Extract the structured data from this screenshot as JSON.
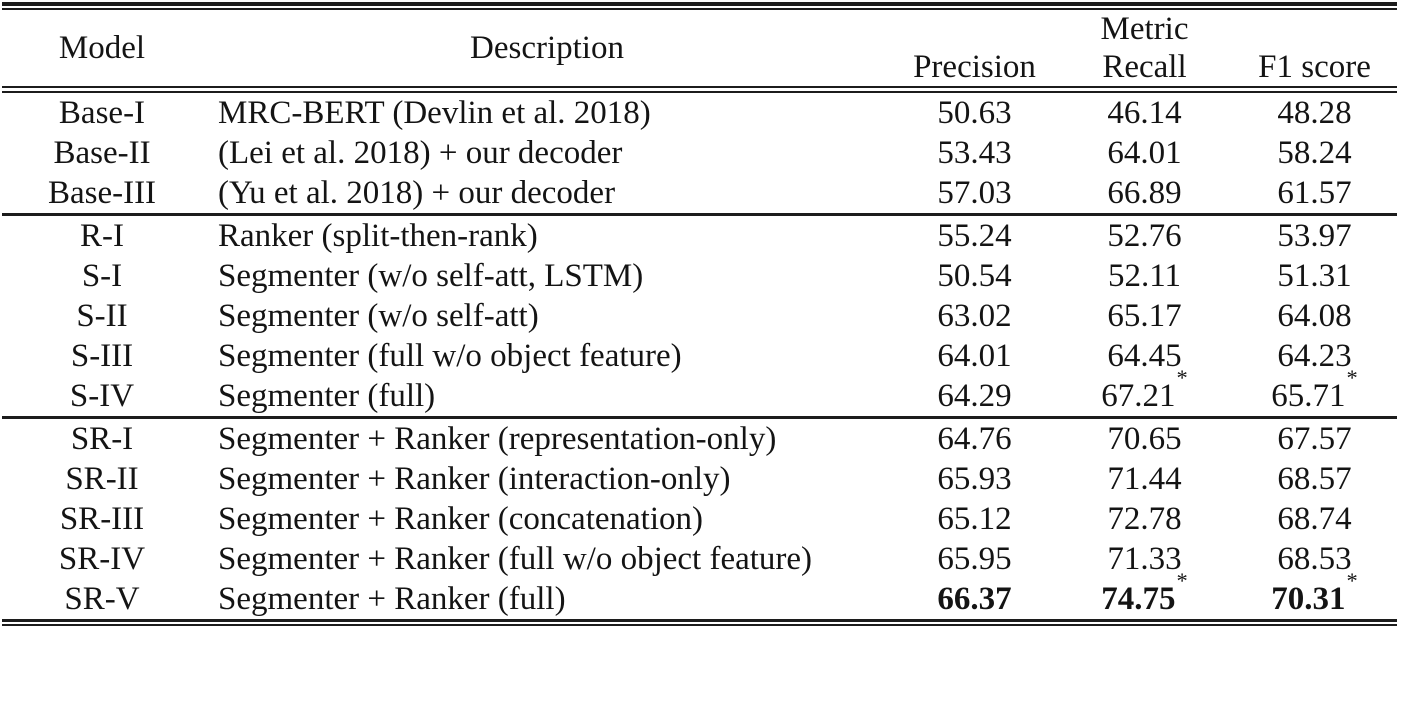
{
  "page": {
    "background": "#ffffff",
    "text_color": "#141414",
    "rule_color": "#1c1c1c"
  },
  "table": {
    "header": {
      "model": "Model",
      "description": "Description",
      "metric_group": "Metric",
      "metric_columns": [
        "Precision",
        "Recall",
        "F1 score"
      ]
    },
    "groups": [
      [
        {
          "model": "Base-I",
          "description": "MRC-BERT (Devlin et al. 2018)",
          "precision": {
            "text": "50.63"
          },
          "recall": {
            "text": "46.14"
          },
          "f1": {
            "text": "48.28"
          }
        },
        {
          "model": "Base-II",
          "description": "(Lei et al. 2018) + our decoder",
          "precision": {
            "text": "53.43"
          },
          "recall": {
            "text": "64.01"
          },
          "f1": {
            "text": "58.24"
          }
        },
        {
          "model": "Base-III",
          "description": "(Yu et al. 2018) + our decoder",
          "precision": {
            "text": "57.03"
          },
          "recall": {
            "text": "66.89"
          },
          "f1": {
            "text": "61.57"
          }
        }
      ],
      [
        {
          "model": "R-I",
          "description": "Ranker (split-then-rank)",
          "precision": {
            "text": "55.24"
          },
          "recall": {
            "text": "52.76"
          },
          "f1": {
            "text": "53.97"
          }
        },
        {
          "model": "S-I",
          "description": "Segmenter (w/o self-att, LSTM)",
          "precision": {
            "text": "50.54"
          },
          "recall": {
            "text": "52.11"
          },
          "f1": {
            "text": "51.31"
          }
        },
        {
          "model": "S-II",
          "description": "Segmenter (w/o self-att)",
          "precision": {
            "text": "63.02"
          },
          "recall": {
            "text": "65.17"
          },
          "f1": {
            "text": "64.08"
          }
        },
        {
          "model": "S-III",
          "description": "Segmenter (full w/o object feature)",
          "precision": {
            "text": "64.01"
          },
          "recall": {
            "text": "64.45"
          },
          "f1": {
            "text": "64.23"
          }
        },
        {
          "model": "S-IV",
          "description": "Segmenter (full)",
          "precision": {
            "text": "64.29"
          },
          "recall": {
            "text": "67.21",
            "star": true
          },
          "f1": {
            "text": "65.71",
            "star": true
          }
        }
      ],
      [
        {
          "model": "SR-I",
          "description": "Segmenter + Ranker (representation-only)",
          "precision": {
            "text": "64.76"
          },
          "recall": {
            "text": "70.65"
          },
          "f1": {
            "text": "67.57"
          }
        },
        {
          "model": "SR-II",
          "description": "Segmenter + Ranker (interaction-only)",
          "precision": {
            "text": "65.93"
          },
          "recall": {
            "text": "71.44"
          },
          "f1": {
            "text": "68.57"
          }
        },
        {
          "model": "SR-III",
          "description": "Segmenter + Ranker (concatenation)",
          "precision": {
            "text": "65.12"
          },
          "recall": {
            "text": "72.78"
          },
          "f1": {
            "text": "68.74"
          }
        },
        {
          "model": "SR-IV",
          "description": "Segmenter + Ranker (full w/o object feature)",
          "precision": {
            "text": "65.95"
          },
          "recall": {
            "text": "71.33"
          },
          "f1": {
            "text": "68.53"
          }
        },
        {
          "model": "SR-V",
          "description": "Segmenter + Ranker (full)",
          "precision": {
            "text": "66.37",
            "bold": true
          },
          "recall": {
            "text": "74.75",
            "bold": true,
            "star": true
          },
          "f1": {
            "text": "70.31",
            "bold": true,
            "star": true
          }
        }
      ]
    ]
  }
}
